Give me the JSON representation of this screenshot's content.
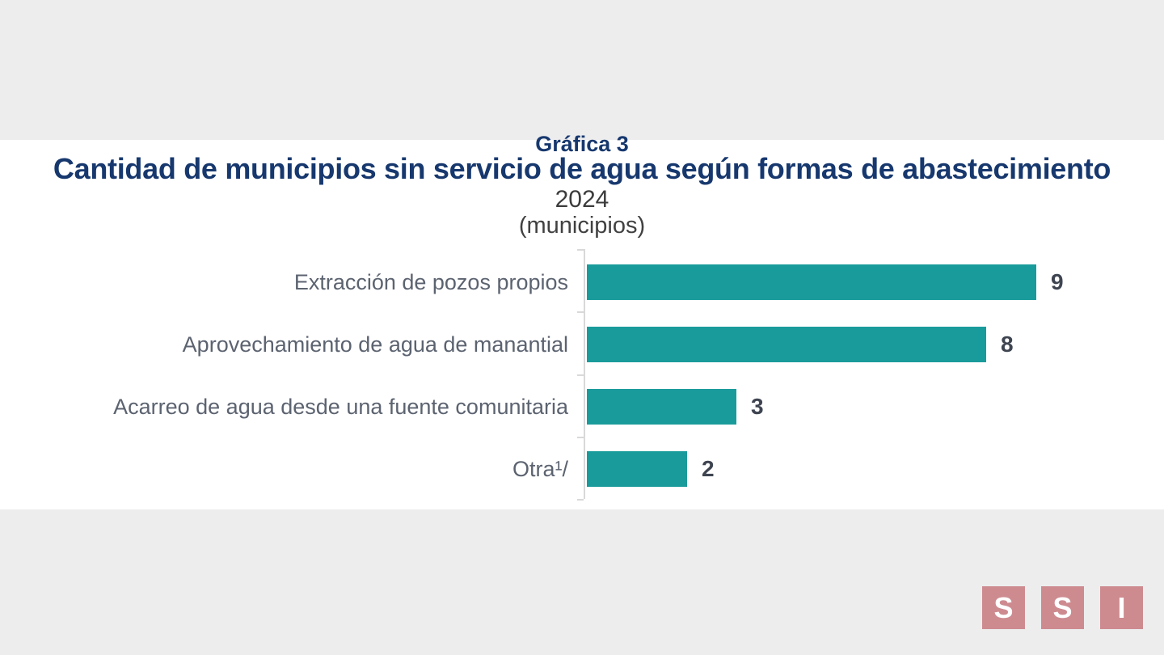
{
  "page": {
    "background_color": "#EDEDEE",
    "panel_color": "#FFFFFF"
  },
  "header": {
    "clipped_label": "Gráfica 3",
    "title": "Cantidad de municipios sin servicio de agua según formas de abastecimiento",
    "year": "2024",
    "unit": "(municipios)"
  },
  "chart_data": {
    "type": "bar",
    "orientation": "horizontal",
    "title": "Cantidad de municipios sin servicio de agua según formas de abastecimiento",
    "subtitle": "2024",
    "unit_label": "(municipios)",
    "categories": [
      "Extracción de pozos propios",
      "Aprovechamiento de agua de manantial",
      "Acarreo de agua desde una fuente comunitaria",
      "Otra¹/"
    ],
    "values": [
      9,
      8,
      3,
      2
    ],
    "data_labels": [
      "9",
      "8",
      "3",
      "2"
    ],
    "xlim": [
      0,
      9
    ],
    "grid": false,
    "legend": false,
    "bar_color": "#1A9B9B",
    "axis_color": "#D9D9D9",
    "category_label_color": "#5C6370",
    "value_label_color": "#3E4450",
    "title_color": "#17386E"
  },
  "logo": {
    "letters": [
      "S",
      "S",
      "I"
    ],
    "square_color": "#CD8B90",
    "letter_color": "#FFFFFF"
  }
}
